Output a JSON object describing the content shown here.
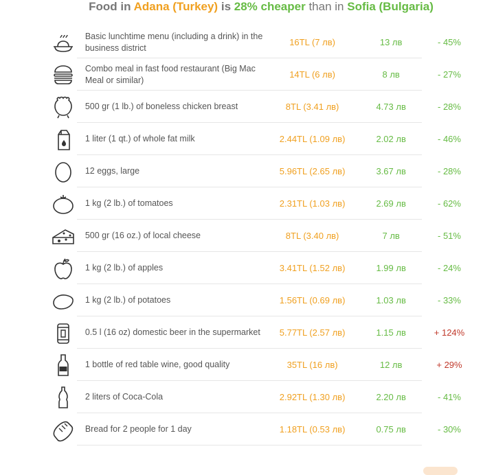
{
  "header": {
    "prefix": "Food in",
    "city_a": "Adana (Turkey)",
    "is": "is",
    "percent_text": "28% cheaper",
    "than": "than in",
    "city_b": "Sofia (Bulgaria)"
  },
  "rows": [
    {
      "icon": "lunch-plate-icon",
      "desc": "Basic lunchtime menu (including a drink) in the business district",
      "local": "16TL (7 лв)",
      "other": "13 лв",
      "diff": "- 45%",
      "trend": "neg"
    },
    {
      "icon": "burger-icon",
      "desc": "Combo meal in fast food restaurant (Big Mac Meal or similar)",
      "local": "14TL (6 лв)",
      "other": "8 лв",
      "diff": "- 27%",
      "trend": "neg"
    },
    {
      "icon": "chicken-icon",
      "desc": "500 gr (1 lb.) of boneless chicken breast",
      "local": "8TL (3.41 лв)",
      "other": "4.73 лв",
      "diff": "- 28%",
      "trend": "neg"
    },
    {
      "icon": "milk-carton-icon",
      "desc": "1 liter (1 qt.) of whole fat milk",
      "local": "2.44TL (1.09 лв)",
      "other": "2.02 лв",
      "diff": "- 46%",
      "trend": "neg"
    },
    {
      "icon": "egg-icon",
      "desc": "12 eggs, large",
      "local": "5.96TL (2.65 лв)",
      "other": "3.67 лв",
      "diff": "- 28%",
      "trend": "neg"
    },
    {
      "icon": "tomato-icon",
      "desc": "1 kg (2 lb.) of tomatoes",
      "local": "2.31TL (1.03 лв)",
      "other": "2.69 лв",
      "diff": "- 62%",
      "trend": "neg"
    },
    {
      "icon": "cheese-icon",
      "desc": "500 gr (16 oz.) of local cheese",
      "local": "8TL (3.40 лв)",
      "other": "7 лв",
      "diff": "- 51%",
      "trend": "neg"
    },
    {
      "icon": "apple-icon",
      "desc": "1 kg (2 lb.) of apples",
      "local": "3.41TL (1.52 лв)",
      "other": "1.99 лв",
      "diff": "- 24%",
      "trend": "neg"
    },
    {
      "icon": "potato-icon",
      "desc": "1 kg (2 lb.) of potatoes",
      "local": "1.56TL (0.69 лв)",
      "other": "1.03 лв",
      "diff": "- 33%",
      "trend": "neg"
    },
    {
      "icon": "beer-can-icon",
      "desc": "0.5 l (16 oz) domestic beer in the supermarket",
      "local": "5.77TL (2.57 лв)",
      "other": "1.15 лв",
      "diff": "+ 124%",
      "trend": "pos"
    },
    {
      "icon": "wine-bottle-icon",
      "desc": "1 bottle of red table wine, good quality",
      "local": "35TL (16 лв)",
      "other": "12 лв",
      "diff": "+ 29%",
      "trend": "pos"
    },
    {
      "icon": "soda-bottle-icon",
      "desc": "2 liters of Coca-Cola",
      "local": "2.92TL (1.30 лв)",
      "other": "2.20 лв",
      "diff": "- 41%",
      "trend": "neg"
    },
    {
      "icon": "bread-icon",
      "desc": "Bread for 2 people for 1 day",
      "local": "1.18TL (0.53 лв)",
      "other": "0.75 лв",
      "diff": "- 30%",
      "trend": "neg"
    }
  ]
}
